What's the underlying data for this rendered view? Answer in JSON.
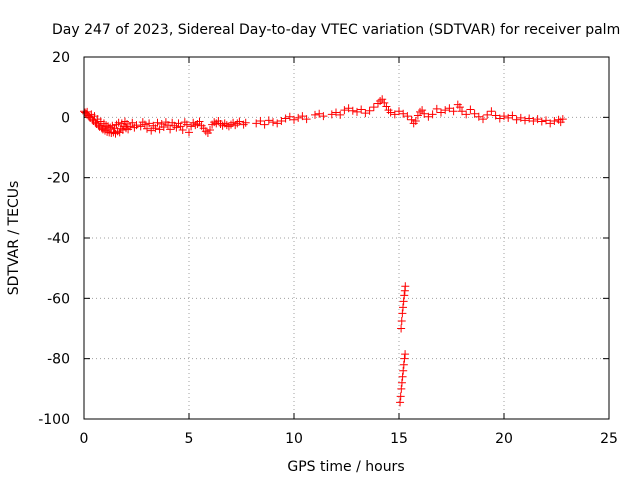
{
  "chart_data": {
    "type": "scatter",
    "title": "Day 247 of 2023, Sidereal Day-to-day VTEC variation (SDTVAR) for receiver palm",
    "xlabel": "GPS time / hours",
    "ylabel": "SDTVAR / TECUs",
    "xlim": [
      0,
      25
    ],
    "ylim": [
      -100,
      20
    ],
    "xticks": [
      0,
      5,
      10,
      15,
      20,
      25
    ],
    "yticks": [
      -100,
      -80,
      -60,
      -40,
      -20,
      0,
      20
    ],
    "grid": true,
    "marker": "+",
    "color": "#ff0000",
    "series": [
      {
        "name": "SDTVAR",
        "points": [
          [
            0.0,
            2.0
          ],
          [
            0.05,
            1.6
          ],
          [
            0.1,
            1.2
          ],
          [
            0.15,
            1.8
          ],
          [
            0.2,
            0.6
          ],
          [
            0.25,
            0.2
          ],
          [
            0.3,
            -0.2
          ],
          [
            0.35,
            1.0
          ],
          [
            0.4,
            -0.8
          ],
          [
            0.45,
            -1.2
          ],
          [
            0.5,
            0.4
          ],
          [
            0.55,
            -1.8
          ],
          [
            0.6,
            -2.2
          ],
          [
            0.65,
            -0.6
          ],
          [
            0.7,
            -2.8
          ],
          [
            0.75,
            -3.2
          ],
          [
            0.8,
            -1.4
          ],
          [
            0.85,
            -3.6
          ],
          [
            0.9,
            -4.0
          ],
          [
            0.95,
            -2.0
          ],
          [
            1.0,
            -4.4
          ],
          [
            1.05,
            -2.6
          ],
          [
            1.1,
            -4.8
          ],
          [
            1.15,
            -3.0
          ],
          [
            1.2,
            -5.0
          ],
          [
            1.25,
            -3.4
          ],
          [
            1.3,
            -5.2
          ],
          [
            1.35,
            -2.8
          ],
          [
            1.4,
            -5.0
          ],
          [
            1.45,
            -3.6
          ],
          [
            1.5,
            -5.4
          ],
          [
            1.55,
            -2.4
          ],
          [
            1.6,
            -4.6
          ],
          [
            1.65,
            -1.8
          ],
          [
            1.7,
            -5.0
          ],
          [
            1.75,
            -3.8
          ],
          [
            1.8,
            -2.0
          ],
          [
            1.85,
            -4.2
          ],
          [
            1.9,
            -3.0
          ],
          [
            1.95,
            -1.4
          ],
          [
            2.0,
            -3.6
          ],
          [
            2.05,
            -2.2
          ],
          [
            2.1,
            -4.0
          ],
          [
            2.2,
            -3.0
          ],
          [
            2.3,
            -1.8
          ],
          [
            2.4,
            -3.4
          ],
          [
            2.5,
            -2.6
          ],
          [
            2.7,
            -3.0
          ],
          [
            2.8,
            -1.6
          ],
          [
            2.9,
            -2.4
          ],
          [
            3.0,
            -3.8
          ],
          [
            3.1,
            -2.0
          ],
          [
            3.2,
            -4.4
          ],
          [
            3.3,
            -2.8
          ],
          [
            3.4,
            -3.6
          ],
          [
            3.5,
            -1.8
          ],
          [
            3.6,
            -4.0
          ],
          [
            3.7,
            -2.2
          ],
          [
            3.8,
            -3.2
          ],
          [
            3.9,
            -1.6
          ],
          [
            4.0,
            -2.6
          ],
          [
            4.1,
            -4.0
          ],
          [
            4.2,
            -1.8
          ],
          [
            4.3,
            -2.8
          ],
          [
            4.4,
            -3.4
          ],
          [
            4.5,
            -2.0
          ],
          [
            4.6,
            -3.0
          ],
          [
            4.7,
            -4.2
          ],
          [
            4.8,
            -1.6
          ],
          [
            4.9,
            -2.4
          ],
          [
            5.0,
            -5.0
          ],
          [
            5.1,
            -3.0
          ],
          [
            5.2,
            -1.8
          ],
          [
            5.3,
            -2.6
          ],
          [
            5.4,
            -2.2
          ],
          [
            5.5,
            -1.4
          ],
          [
            5.6,
            -2.8
          ],
          [
            5.7,
            -3.6
          ],
          [
            5.8,
            -4.6
          ],
          [
            5.9,
            -5.2
          ],
          [
            6.0,
            -4.2
          ],
          [
            6.1,
            -2.4
          ],
          [
            6.2,
            -1.6
          ],
          [
            6.3,
            -2.0
          ],
          [
            6.4,
            -1.2
          ],
          [
            6.5,
            -2.2
          ],
          [
            6.6,
            -2.8
          ],
          [
            6.7,
            -2.0
          ],
          [
            6.8,
            -2.6
          ],
          [
            6.9,
            -3.0
          ],
          [
            7.0,
            -2.4
          ],
          [
            7.1,
            -1.8
          ],
          [
            7.2,
            -2.6
          ],
          [
            7.3,
            -2.0
          ],
          [
            7.4,
            -1.4
          ],
          [
            7.6,
            -2.4
          ],
          [
            7.7,
            -1.8
          ],
          [
            8.2,
            -2.0
          ],
          [
            8.4,
            -1.2
          ],
          [
            8.6,
            -2.4
          ],
          [
            8.8,
            -1.0
          ],
          [
            9.0,
            -1.6
          ],
          [
            9.2,
            -2.0
          ],
          [
            9.4,
            -1.2
          ],
          [
            9.6,
            -0.4
          ],
          [
            9.8,
            0.2
          ],
          [
            10.0,
            -0.8
          ],
          [
            10.2,
            -0.2
          ],
          [
            10.4,
            0.4
          ],
          [
            10.6,
            -0.6
          ],
          [
            11.0,
            0.8
          ],
          [
            11.2,
            1.2
          ],
          [
            11.4,
            0.4
          ],
          [
            11.8,
            1.0
          ],
          [
            12.0,
            1.6
          ],
          [
            12.2,
            0.8
          ],
          [
            12.4,
            2.4
          ],
          [
            12.6,
            3.0
          ],
          [
            12.8,
            2.2
          ],
          [
            13.0,
            1.8
          ],
          [
            13.2,
            2.6
          ],
          [
            13.4,
            1.4
          ],
          [
            13.6,
            2.2
          ],
          [
            13.8,
            3.4
          ],
          [
            14.0,
            4.6
          ],
          [
            14.1,
            5.4
          ],
          [
            14.2,
            6.0
          ],
          [
            14.3,
            4.8
          ],
          [
            14.4,
            3.6
          ],
          [
            14.5,
            2.4
          ],
          [
            14.6,
            1.6
          ],
          [
            14.8,
            1.0
          ],
          [
            15.0,
            2.0
          ],
          [
            15.2,
            1.2
          ],
          [
            15.4,
            0.4
          ],
          [
            15.6,
            -0.8
          ],
          [
            15.7,
            -2.0
          ],
          [
            15.8,
            -1.2
          ],
          [
            15.9,
            0.6
          ],
          [
            16.0,
            1.8
          ],
          [
            16.1,
            2.4
          ],
          [
            16.2,
            1.2
          ],
          [
            16.4,
            0.2
          ],
          [
            16.6,
            1.0
          ],
          [
            16.8,
            2.8
          ],
          [
            17.0,
            1.6
          ],
          [
            17.2,
            2.4
          ],
          [
            17.4,
            3.0
          ],
          [
            17.6,
            2.0
          ],
          [
            17.8,
            4.2
          ],
          [
            17.9,
            3.4
          ],
          [
            18.0,
            2.0
          ],
          [
            18.2,
            1.0
          ],
          [
            18.4,
            2.6
          ],
          [
            18.6,
            1.2
          ],
          [
            18.8,
            0.2
          ],
          [
            19.0,
            -0.6
          ],
          [
            19.2,
            0.8
          ],
          [
            19.4,
            2.0
          ],
          [
            19.6,
            0.6
          ],
          [
            19.8,
            -0.4
          ],
          [
            20.0,
            0.4
          ],
          [
            20.2,
            -0.2
          ],
          [
            20.4,
            0.6
          ],
          [
            20.6,
            -0.8
          ],
          [
            20.8,
            -0.2
          ],
          [
            21.0,
            -1.0
          ],
          [
            21.2,
            -0.4
          ],
          [
            21.4,
            -1.2
          ],
          [
            21.6,
            -0.6
          ],
          [
            21.8,
            -1.4
          ],
          [
            22.0,
            -1.0
          ],
          [
            22.2,
            -2.0
          ],
          [
            22.4,
            -1.2
          ],
          [
            22.6,
            -0.8
          ],
          [
            22.7,
            -1.6
          ],
          [
            22.8,
            -0.6
          ],
          [
            15.1,
            -70.0
          ],
          [
            15.13,
            -67.5
          ],
          [
            15.16,
            -65.0
          ],
          [
            15.19,
            -63.0
          ],
          [
            15.22,
            -61.0
          ],
          [
            15.25,
            -59.0
          ],
          [
            15.28,
            -57.5
          ],
          [
            15.3,
            -56.0
          ],
          [
            15.05,
            -94.5
          ],
          [
            15.08,
            -92.5
          ],
          [
            15.11,
            -90.0
          ],
          [
            15.14,
            -88.0
          ],
          [
            15.17,
            -86.0
          ],
          [
            15.2,
            -84.0
          ],
          [
            15.23,
            -82.0
          ],
          [
            15.26,
            -80.0
          ],
          [
            15.29,
            -78.5
          ]
        ]
      }
    ]
  }
}
